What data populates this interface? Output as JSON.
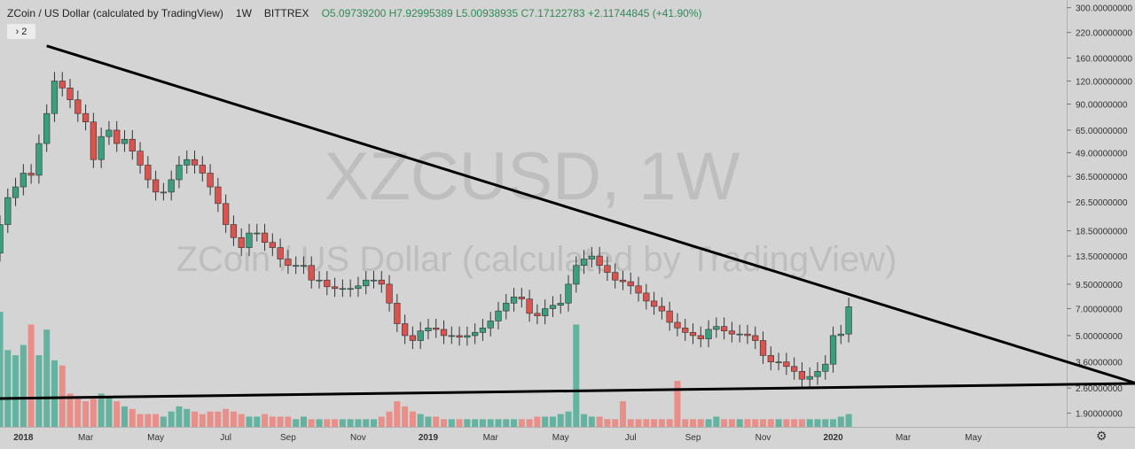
{
  "header": {
    "symbol_title": "ZCoin / US Dollar (calculated by TradingView)",
    "interval": "1W",
    "exchange": "BITTREX",
    "open": "O5.09739200",
    "high": "H7.92995389",
    "low": "L5.00938935",
    "close": "C7.17122783",
    "change": "+2.11744845 (+41.90%)"
  },
  "indicators_toggle": {
    "icon": "chevron-right-icon",
    "count": "2"
  },
  "settings_icon": "gear-icon",
  "colors": {
    "background": "#d4d4d4",
    "up": "#3b9e7e",
    "down": "#d9534f",
    "trendline": "#000000",
    "watermark": "#bebebe",
    "grid": "#cccccc"
  },
  "chart_data": {
    "type": "candlestick",
    "watermark": {
      "line1": "XZCUSD, 1W",
      "line2": "ZCoin / US Dollar (calculated by TradingView)"
    },
    "price_scale": "log",
    "y_ticks": [
      "300.00000000",
      "220.00000000",
      "160.00000000",
      "120.00000000",
      "90.00000000",
      "65.00000000",
      "49.00000000",
      "36.50000000",
      "26.50000000",
      "18.50000000",
      "13.50000000",
      "9.50000000",
      "7.00000000",
      "5.00000000",
      "3.60000000",
      "2.60000000",
      "1.90000000"
    ],
    "ylim": [
      1.6,
      330
    ],
    "x_ticks": [
      {
        "label": "2018",
        "week": 3
      },
      {
        "label": "Mar",
        "week": 11
      },
      {
        "label": "May",
        "week": 20
      },
      {
        "label": "Jul",
        "week": 29
      },
      {
        "label": "Sep",
        "week": 37
      },
      {
        "label": "Nov",
        "week": 46
      },
      {
        "label": "2019",
        "week": 55
      },
      {
        "label": "Mar",
        "week": 63
      },
      {
        "label": "May",
        "week": 72
      },
      {
        "label": "Jul",
        "week": 81
      },
      {
        "label": "Sep",
        "week": 89
      },
      {
        "label": "Nov",
        "week": 98
      },
      {
        "label": "2020",
        "week": 107
      },
      {
        "label": "Mar",
        "week": 116
      },
      {
        "label": "May",
        "week": 125
      }
    ],
    "xlim": [
      0,
      137
    ],
    "closes": [
      20,
      28,
      32,
      38,
      37,
      55,
      80,
      120,
      110,
      95,
      80,
      72,
      45,
      60,
      65,
      55,
      58,
      50,
      42,
      35,
      30,
      30,
      35,
      42,
      45,
      42,
      38,
      32,
      26,
      20,
      17,
      15,
      18,
      18,
      16,
      15,
      13,
      12,
      12,
      12,
      10,
      10,
      9.2,
      9.0,
      9.0,
      9.0,
      9.3,
      10,
      10,
      9.5,
      7.5,
      5.8,
      5.0,
      4.7,
      5.3,
      5.5,
      5.4,
      5.0,
      5.0,
      4.9,
      5.0,
      5.2,
      5.5,
      6.0,
      6.8,
      7.5,
      8.1,
      7.9,
      6.6,
      6.4,
      7.0,
      7.3,
      7.5,
      9.5,
      12,
      13,
      13.5,
      12,
      11,
      10,
      9.8,
      9.3,
      8.5,
      7.7,
      7.2,
      6.8,
      5.9,
      5.5,
      5.2,
      5.0,
      4.8,
      5.4,
      5.6,
      5.3,
      5.1,
      5.1,
      5.0,
      4.7,
      3.9,
      3.6,
      3.6,
      3.4,
      3.2,
      2.9,
      3.0,
      3.2,
      3.5,
      5.0,
      5.097392,
      7.17122783
    ],
    "volume": [
      45,
      30,
      28,
      32,
      40,
      28,
      38,
      26,
      24,
      13,
      11,
      10,
      11,
      13,
      12,
      10,
      8,
      7,
      5,
      5,
      5,
      4,
      6,
      8,
      7,
      6,
      5,
      6,
      6,
      7,
      6,
      5,
      4,
      4,
      5,
      4,
      4,
      4,
      3,
      4,
      3,
      3,
      3,
      3,
      3,
      3,
      3,
      3,
      3,
      4,
      6,
      10,
      8,
      6,
      5,
      4,
      4,
      3,
      3,
      3,
      3,
      3,
      3,
      3,
      3,
      3,
      3,
      3,
      3,
      4,
      4,
      4,
      5,
      6,
      6,
      5,
      4,
      4,
      3,
      3,
      3,
      3,
      3,
      3,
      3,
      3,
      3,
      3,
      3,
      3,
      3,
      3,
      4,
      3,
      3,
      3,
      3,
      3,
      3,
      3,
      3,
      3,
      3,
      3,
      3,
      3,
      3,
      3,
      4,
      5
    ],
    "volume_spikes": [
      {
        "week": 74,
        "value": 40
      },
      {
        "week": 80,
        "value": 10
      },
      {
        "week": 87,
        "value": 18
      }
    ],
    "trendlines": [
      {
        "name": "resistance",
        "from": {
          "week": 6,
          "price": 186
        },
        "to": {
          "week": 146,
          "price": 2.75
        }
      },
      {
        "name": "support",
        "from": {
          "week": 0,
          "price": 2.28
        },
        "to": {
          "week": 146,
          "price": 2.75
        }
      }
    ]
  }
}
